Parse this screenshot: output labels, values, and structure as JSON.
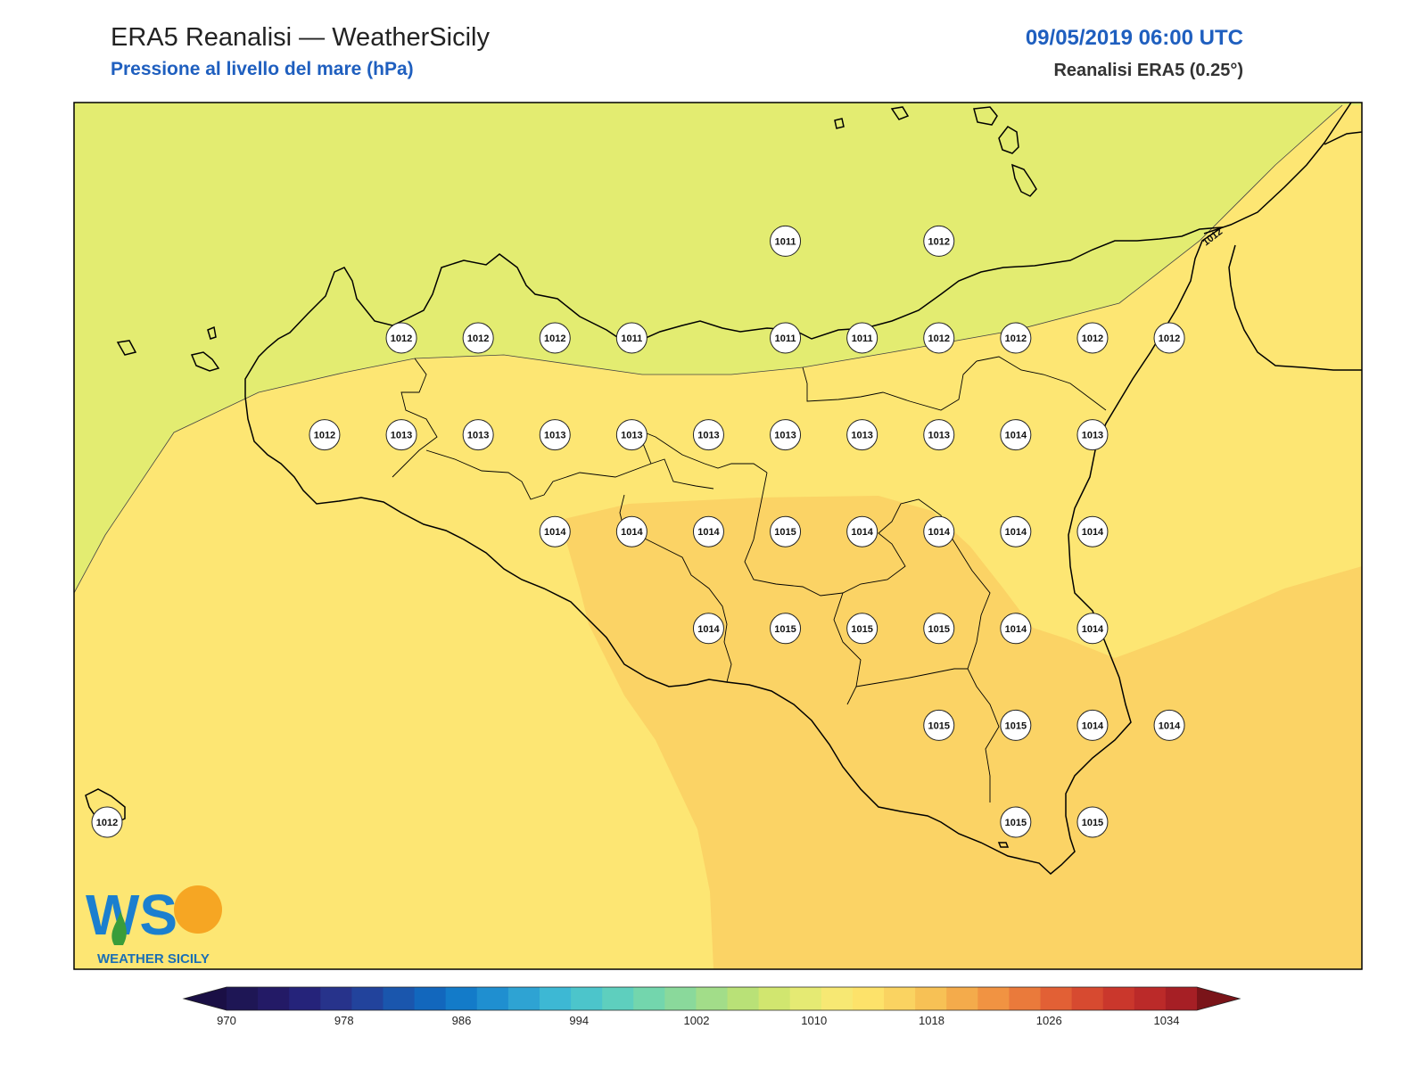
{
  "header": {
    "title": "ERA5 Reanalisi — WeatherSicily",
    "subtitle": "Pressione al livello del mare (hPa)",
    "datetime": "09/05/2019 06:00 UTC",
    "source": "Reanalisi ERA5 (0.25°)"
  },
  "logo": {
    "letters": "WS",
    "text": "WEATHER SICILY"
  },
  "contour_label": "1012",
  "colors": {
    "band_1011_1012": "#e3ec71",
    "band_1013_1014": "#fde673",
    "band_1015": "#fbd365",
    "coast": "#000000"
  },
  "colorbar": {
    "tick_labels": [
      "970",
      "978",
      "986",
      "994",
      "1002",
      "1010",
      "1018",
      "1026",
      "1034"
    ],
    "colors": [
      "#1e1655",
      "#231a66",
      "#25237a",
      "#27338b",
      "#22439c",
      "#1a56ad",
      "#1267bd",
      "#137bc9",
      "#1f8fd0",
      "#2ea3d3",
      "#3db8d4",
      "#4cc5cb",
      "#5ecfbe",
      "#73d6ad",
      "#8ad99b",
      "#a2dd89",
      "#b9e177",
      "#d1e66f",
      "#e5ea73",
      "#f7e873",
      "#fde26a",
      "#fad361",
      "#f7c155",
      "#f4ab4b",
      "#f19342",
      "#ea7a3b",
      "#e26035",
      "#d74a30",
      "#ca372c",
      "#bb2a29",
      "#a61f25"
    ],
    "under_color": "#1a0f45",
    "over_color": "#7a1419"
  },
  "stations": [
    {
      "v": "1011",
      "x": 13.65,
      "y": 38.82
    },
    {
      "v": "1012",
      "x": 14.25,
      "y": 38.82
    },
    {
      "v": "1012",
      "x": 12.15,
      "y": 38.22
    },
    {
      "v": "1012",
      "x": 12.45,
      "y": 38.22
    },
    {
      "v": "1012",
      "x": 12.75,
      "y": 38.22
    },
    {
      "v": "1011",
      "x": 13.05,
      "y": 38.22
    },
    {
      "v": "1011",
      "x": 13.65,
      "y": 38.22
    },
    {
      "v": "1011",
      "x": 13.95,
      "y": 38.22
    },
    {
      "v": "1012",
      "x": 14.25,
      "y": 38.22
    },
    {
      "v": "1012",
      "x": 14.55,
      "y": 38.22
    },
    {
      "v": "1012",
      "x": 14.85,
      "y": 38.22
    },
    {
      "v": "1012",
      "x": 15.15,
      "y": 38.22
    },
    {
      "v": "1012",
      "x": 11.85,
      "y": 37.62
    },
    {
      "v": "1013",
      "x": 12.15,
      "y": 37.62
    },
    {
      "v": "1013",
      "x": 12.45,
      "y": 37.62
    },
    {
      "v": "1013",
      "x": 12.75,
      "y": 37.62
    },
    {
      "v": "1013",
      "x": 13.05,
      "y": 37.62
    },
    {
      "v": "1013",
      "x": 13.35,
      "y": 37.62
    },
    {
      "v": "1013",
      "x": 13.65,
      "y": 37.62
    },
    {
      "v": "1013",
      "x": 13.95,
      "y": 37.62
    },
    {
      "v": "1013",
      "x": 14.25,
      "y": 37.62
    },
    {
      "v": "1014",
      "x": 14.55,
      "y": 37.62
    },
    {
      "v": "1013",
      "x": 14.85,
      "y": 37.62
    },
    {
      "v": "1014",
      "x": 12.75,
      "y": 37.02
    },
    {
      "v": "1014",
      "x": 13.05,
      "y": 37.02
    },
    {
      "v": "1014",
      "x": 13.35,
      "y": 37.02
    },
    {
      "v": "1015",
      "x": 13.65,
      "y": 37.02
    },
    {
      "v": "1014",
      "x": 13.95,
      "y": 37.02
    },
    {
      "v": "1014",
      "x": 14.25,
      "y": 37.02
    },
    {
      "v": "1014",
      "x": 14.55,
      "y": 37.02
    },
    {
      "v": "1014",
      "x": 14.85,
      "y": 37.02
    },
    {
      "v": "1014",
      "x": 13.35,
      "y": 36.42
    },
    {
      "v": "1015",
      "x": 13.65,
      "y": 36.42
    },
    {
      "v": "1015",
      "x": 13.95,
      "y": 36.42
    },
    {
      "v": "1015",
      "x": 14.25,
      "y": 36.42
    },
    {
      "v": "1014",
      "x": 14.55,
      "y": 36.42
    },
    {
      "v": "1014",
      "x": 14.85,
      "y": 36.42
    },
    {
      "v": "1015",
      "x": 14.25,
      "y": 35.82
    },
    {
      "v": "1015",
      "x": 14.55,
      "y": 35.82
    },
    {
      "v": "1014",
      "x": 14.85,
      "y": 35.82
    },
    {
      "v": "1014",
      "x": 15.15,
      "y": 35.82
    },
    {
      "v": "1015",
      "x": 14.55,
      "y": 35.22
    },
    {
      "v": "1015",
      "x": 14.85,
      "y": 35.22
    },
    {
      "v": "1012",
      "x": 11.0,
      "y": 35.22
    }
  ]
}
